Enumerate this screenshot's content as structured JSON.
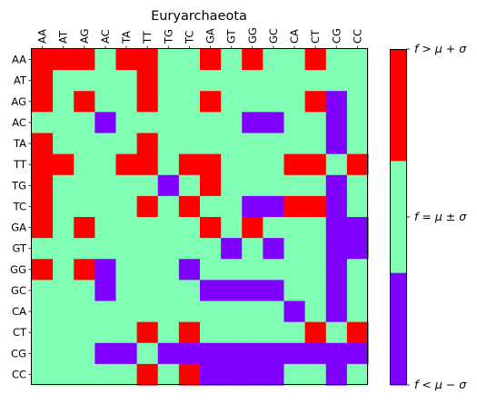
{
  "chart_data": {
    "type": "heatmap",
    "title": "Euryarchaeota",
    "x_labels": [
      "AA",
      "AT",
      "AG",
      "AC",
      "TA",
      "TT",
      "TG",
      "TC",
      "GA",
      "GT",
      "GG",
      "GC",
      "CA",
      "CT",
      "CG",
      "CC"
    ],
    "y_labels": [
      "AA",
      "AT",
      "AG",
      "AC",
      "TA",
      "TT",
      "TG",
      "TC",
      "GA",
      "GT",
      "GG",
      "GC",
      "CA",
      "CT",
      "CG",
      "CC"
    ],
    "categories": [
      {
        "code": -1,
        "label": "f < μ − σ",
        "color": "#8000ff"
      },
      {
        "code": 0,
        "label": "f = μ ± σ",
        "color": "#80ffb4"
      },
      {
        "code": 1,
        "label": "f > μ + σ",
        "color": "#ff0000"
      }
    ],
    "colorbar_ticks": [
      "f < μ − σ",
      "f = μ ± σ",
      "f > μ + σ"
    ],
    "matrix": [
      [
        1,
        1,
        1,
        0,
        1,
        1,
        0,
        0,
        1,
        0,
        1,
        0,
        0,
        1,
        0,
        0
      ],
      [
        1,
        0,
        0,
        0,
        0,
        1,
        0,
        0,
        0,
        0,
        0,
        0,
        0,
        0,
        0,
        0
      ],
      [
        1,
        0,
        1,
        0,
        0,
        1,
        0,
        0,
        1,
        0,
        0,
        0,
        0,
        1,
        -1,
        0
      ],
      [
        0,
        0,
        0,
        -1,
        0,
        0,
        0,
        0,
        0,
        0,
        -1,
        -1,
        0,
        0,
        -1,
        0
      ],
      [
        1,
        0,
        0,
        0,
        0,
        1,
        0,
        0,
        0,
        0,
        0,
        0,
        0,
        0,
        -1,
        0
      ],
      [
        1,
        1,
        0,
        0,
        1,
        1,
        0,
        1,
        1,
        0,
        0,
        0,
        1,
        1,
        0,
        1
      ],
      [
        1,
        0,
        0,
        0,
        0,
        0,
        -1,
        0,
        1,
        0,
        0,
        0,
        0,
        0,
        -1,
        0
      ],
      [
        1,
        0,
        0,
        0,
        0,
        1,
        0,
        1,
        0,
        0,
        -1,
        -1,
        1,
        1,
        -1,
        0
      ],
      [
        1,
        0,
        1,
        0,
        0,
        0,
        0,
        0,
        1,
        0,
        1,
        0,
        0,
        0,
        -1,
        -1
      ],
      [
        0,
        0,
        0,
        0,
        0,
        0,
        0,
        0,
        0,
        -1,
        0,
        -1,
        0,
        0,
        -1,
        -1
      ],
      [
        1,
        0,
        1,
        -1,
        0,
        0,
        0,
        -1,
        0,
        0,
        0,
        0,
        0,
        0,
        -1,
        0
      ],
      [
        0,
        0,
        0,
        -1,
        0,
        0,
        0,
        0,
        -1,
        -1,
        -1,
        -1,
        0,
        0,
        -1,
        0
      ],
      [
        0,
        0,
        0,
        0,
        0,
        0,
        0,
        0,
        0,
        0,
        0,
        0,
        -1,
        0,
        -1,
        0
      ],
      [
        0,
        0,
        0,
        0,
        0,
        1,
        0,
        1,
        0,
        0,
        0,
        0,
        0,
        1,
        0,
        1
      ],
      [
        0,
        0,
        0,
        -1,
        -1,
        0,
        -1,
        -1,
        -1,
        -1,
        -1,
        -1,
        -1,
        -1,
        -1,
        -1
      ],
      [
        0,
        0,
        0,
        0,
        0,
        1,
        0,
        1,
        -1,
        -1,
        -1,
        -1,
        0,
        0,
        -1,
        0
      ]
    ]
  }
}
